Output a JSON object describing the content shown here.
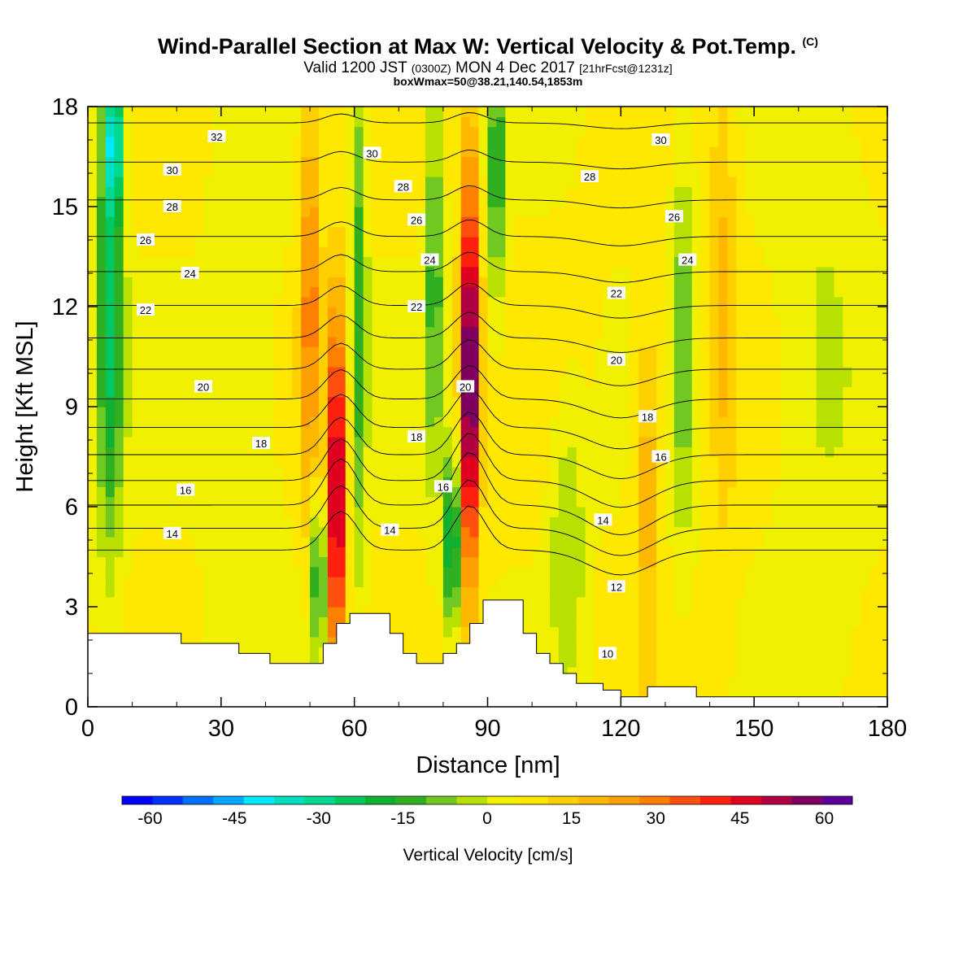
{
  "header": {
    "title": "Wind-Parallel Section at Max W: Vertical Velocity & Pot.Temp.",
    "title_mark": "(C)",
    "valid_prefix": "Valid 1200 JST",
    "valid_zulu": "(0300Z)",
    "valid_date": "MON 4 Dec 2017",
    "forecast": "[21hrFcst@1231z]",
    "box_info": "boxWmax=50@38.21,140.54,1853m"
  },
  "chart_data": {
    "type": "heatmap",
    "xlabel": "Distance [nm]",
    "ylabel": "Height [Kft MSL]",
    "xlim": [
      0,
      180
    ],
    "ylim": [
      0,
      18
    ],
    "x_ticks": [
      0,
      30,
      60,
      90,
      120,
      150,
      180
    ],
    "y_ticks": [
      0,
      3,
      6,
      9,
      12,
      15,
      18
    ],
    "colorbar": {
      "label": "Vertical Velocity [cm/s]",
      "ticks": [
        -60,
        -45,
        -30,
        -15,
        0,
        15,
        30,
        45,
        60
      ],
      "range": [
        -65,
        65
      ],
      "colors": [
        "#0000ff",
        "#0030ff",
        "#0070ff",
        "#00a8ff",
        "#00e8ff",
        "#00e0c0",
        "#00d890",
        "#00c860",
        "#10b030",
        "#30b020",
        "#70c820",
        "#b8e000",
        "#f0f000",
        "#ffe800",
        "#ffd000",
        "#ffb800",
        "#ffa000",
        "#ff8000",
        "#ff5010",
        "#ff2010",
        "#e00020",
        "#b00040",
        "#800060",
        "#60009a"
      ]
    },
    "terrain": [
      [
        0,
        2.2
      ],
      [
        21,
        2.2
      ],
      [
        21,
        1.9
      ],
      [
        34,
        1.9
      ],
      [
        34,
        1.6
      ],
      [
        41,
        1.6
      ],
      [
        41,
        1.3
      ],
      [
        53,
        1.3
      ],
      [
        53,
        1.9
      ],
      [
        56,
        1.9
      ],
      [
        56,
        2.5
      ],
      [
        59,
        2.5
      ],
      [
        59,
        2.8
      ],
      [
        68,
        2.8
      ],
      [
        68,
        2.2
      ],
      [
        71,
        2.2
      ],
      [
        71,
        1.6
      ],
      [
        74,
        1.6
      ],
      [
        74,
        1.3
      ],
      [
        80,
        1.3
      ],
      [
        80,
        1.6
      ],
      [
        83,
        1.6
      ],
      [
        83,
        1.9
      ],
      [
        86,
        1.9
      ],
      [
        86,
        2.5
      ],
      [
        89,
        2.5
      ],
      [
        89,
        3.2
      ],
      [
        98,
        3.2
      ],
      [
        98,
        2.2
      ],
      [
        101,
        2.2
      ],
      [
        101,
        1.6
      ],
      [
        104,
        1.6
      ],
      [
        104,
        1.3
      ],
      [
        107,
        1.3
      ],
      [
        107,
        1.0
      ],
      [
        110,
        1.0
      ],
      [
        110,
        0.7
      ],
      [
        116,
        0.7
      ],
      [
        116,
        0.5
      ],
      [
        120,
        0.5
      ],
      [
        120,
        0.3
      ],
      [
        126,
        0.3
      ],
      [
        126,
        0.6
      ],
      [
        137,
        0.6
      ],
      [
        137,
        0.3
      ],
      [
        180,
        0.3
      ]
    ],
    "w_features": [
      {
        "x": 5,
        "z": 12,
        "w": -30,
        "sx": 3.0,
        "sz": 7
      },
      {
        "x": 6,
        "z": 17,
        "w": -35,
        "sx": 2.0,
        "sz": 2
      },
      {
        "x": 56,
        "z": 6.5,
        "w": 50,
        "sx": 2.2,
        "sz": 5.5
      },
      {
        "x": 50,
        "z": 12,
        "w": 25,
        "sx": 2.2,
        "sz": 6
      },
      {
        "x": 52,
        "z": 4,
        "w": -30,
        "sx": 1.6,
        "sz": 2.5
      },
      {
        "x": 61,
        "z": 12,
        "w": -20,
        "sx": 1.8,
        "sz": 8
      },
      {
        "x": 86,
        "z": 10,
        "w": 65,
        "sx": 2.0,
        "sz": 6
      },
      {
        "x": 82,
        "z": 5,
        "w": -40,
        "sx": 1.5,
        "sz": 2.5
      },
      {
        "x": 78,
        "z": 13,
        "w": -22,
        "sx": 1.8,
        "sz": 6
      },
      {
        "x": 92,
        "z": 16,
        "w": -22,
        "sx": 2.0,
        "sz": 4
      },
      {
        "x": 108,
        "z": 5,
        "w": -12,
        "sx": 4.0,
        "sz": 4
      },
      {
        "x": 134,
        "z": 11,
        "w": -15,
        "sx": 2.5,
        "sz": 6
      },
      {
        "x": 126,
        "z": 7,
        "w": 15,
        "sx": 3.0,
        "sz": 5
      },
      {
        "x": 143,
        "z": 12,
        "w": 12,
        "sx": 3.0,
        "sz": 7
      },
      {
        "x": 36,
        "z": 8,
        "w": -6,
        "sx": 8.0,
        "sz": 9
      },
      {
        "x": 165,
        "z": 10,
        "w": -8,
        "sx": 10.0,
        "sz": 7
      }
    ],
    "theta_labels": [
      {
        "text": "32",
        "x": 29,
        "z": 17.1
      },
      {
        "text": "30",
        "x": 19,
        "z": 16.1
      },
      {
        "text": "28",
        "x": 19,
        "z": 15.0
      },
      {
        "text": "26",
        "x": 13,
        "z": 14.0
      },
      {
        "text": "24",
        "x": 23,
        "z": 13.0
      },
      {
        "text": "22",
        "x": 13,
        "z": 11.9
      },
      {
        "text": "20",
        "x": 26,
        "z": 9.6
      },
      {
        "text": "18",
        "x": 39,
        "z": 7.9
      },
      {
        "text": "16",
        "x": 22,
        "z": 6.5
      },
      {
        "text": "14",
        "x": 19,
        "z": 5.2
      },
      {
        "text": "30",
        "x": 64,
        "z": 16.6
      },
      {
        "text": "28",
        "x": 71,
        "z": 15.6
      },
      {
        "text": "26",
        "x": 74,
        "z": 14.6
      },
      {
        "text": "24",
        "x": 77,
        "z": 13.4
      },
      {
        "text": "22",
        "x": 74,
        "z": 12.0
      },
      {
        "text": "20",
        "x": 85,
        "z": 9.6
      },
      {
        "text": "18",
        "x": 74,
        "z": 8.1
      },
      {
        "text": "16",
        "x": 80,
        "z": 6.6
      },
      {
        "text": "14",
        "x": 68,
        "z": 5.3
      },
      {
        "text": "30",
        "x": 129,
        "z": 17.0
      },
      {
        "text": "28",
        "x": 113,
        "z": 15.9
      },
      {
        "text": "26",
        "x": 132,
        "z": 14.7
      },
      {
        "text": "24",
        "x": 135,
        "z": 13.4
      },
      {
        "text": "22",
        "x": 119,
        "z": 12.4
      },
      {
        "text": "20",
        "x": 119,
        "z": 10.4
      },
      {
        "text": "18",
        "x": 126,
        "z": 8.7
      },
      {
        "text": "16",
        "x": 129,
        "z": 7.5
      },
      {
        "text": "14",
        "x": 116,
        "z": 5.6
      },
      {
        "text": "12",
        "x": 119,
        "z": 3.6
      },
      {
        "text": "10",
        "x": 117,
        "z": 1.6
      }
    ]
  }
}
